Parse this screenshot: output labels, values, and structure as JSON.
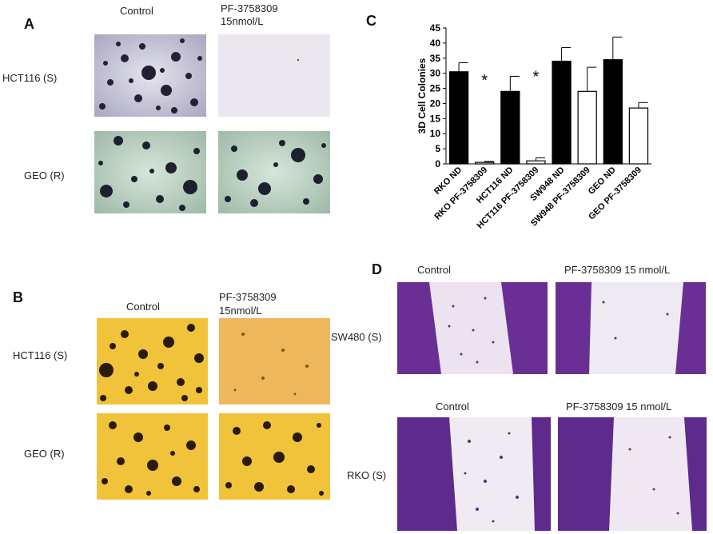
{
  "panels": {
    "A": {
      "letter": "A",
      "col_control": "Control",
      "col_treat_1": "PF-3758309",
      "col_treat_2": "15nmol/L",
      "row1": "HCT116 (S)",
      "row2": "GEO (R)"
    },
    "B": {
      "letter": "B",
      "col_control": "Control",
      "col_treat_1": "PF-3758309",
      "col_treat_2": "15nmol/L",
      "row1": "HCT116 (S)",
      "row2": "GEO (R)"
    },
    "C": {
      "letter": "C"
    },
    "D": {
      "letter": "D",
      "top_control": "Control",
      "top_treat": "PF-3758309 15 nmol/L",
      "bottom_control": "Control",
      "bottom_treat": "PF-3758309 15 nmol/L",
      "row1": "SW480 (S)",
      "row2": "RKO (S)"
    }
  },
  "colors": {
    "A_bg": "#cfcfe0",
    "A_treat_bg": "#ece6ee",
    "A_geo_bg": "#bcd3c2",
    "colony_dark": "#1f1c2e",
    "B_bg": "#f0c238",
    "B_treat_bg": "#efb85a",
    "B_colony": "#2a1a08",
    "D_purple": "#6a2f94",
    "D_light": "#e9e1ef",
    "bar_black": "#000000",
    "bar_white": "#ffffff"
  },
  "chart_data": {
    "type": "bar",
    "ylabel": "3D Cell Colonies",
    "xlabel": "",
    "ylim": [
      0,
      45
    ],
    "yticks": [
      0,
      5,
      10,
      15,
      20,
      25,
      30,
      35,
      40,
      45
    ],
    "categories": [
      "RKO ND",
      "RKO PF-3758309",
      "HCT116 ND",
      "HCT116 PF-3758309",
      "SW948 ND",
      "SW948 PF-3758309",
      "GEO ND",
      "GEO PF-3758309"
    ],
    "values": [
      30.5,
      0.5,
      24,
      1,
      34,
      24,
      34.5,
      18.5
    ],
    "errors": [
      3,
      0.3,
      5,
      1,
      4.5,
      8,
      7.5,
      1.8
    ],
    "fills": [
      "black",
      "white",
      "black",
      "white",
      "black",
      "white",
      "black",
      "white"
    ],
    "annotations": [
      {
        "category": "RKO PF-3758309",
        "text": "*"
      },
      {
        "category": "HCT116 PF-3758309",
        "text": "*"
      }
    ]
  }
}
